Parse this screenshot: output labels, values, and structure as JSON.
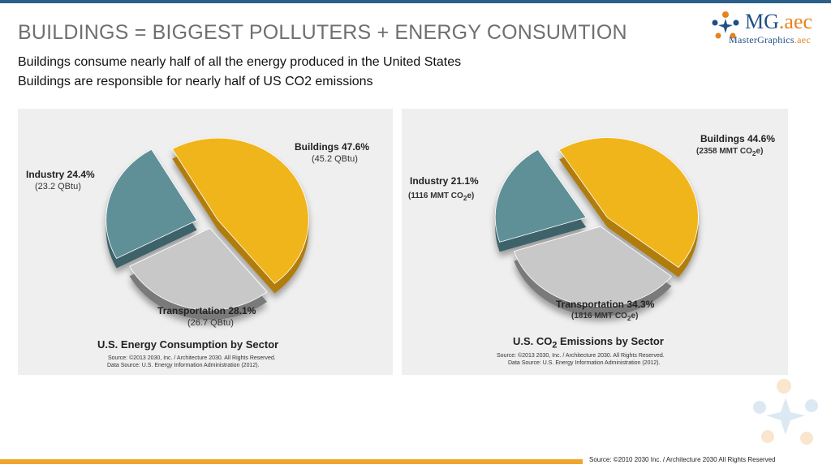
{
  "header": {
    "title": "BUILDINGS = BIGGEST POLLUTERS + ENERGY CONSUMTION",
    "line1": "Buildings consume nearly half of all the energy produced in the United States",
    "line2": "Buildings are responsible for nearly half of US CO2 emissions"
  },
  "logo": {
    "mg": "MG",
    "dot_aec": ".aec",
    "sub": "MasterGraphics",
    "sub_aec": ".aec"
  },
  "colors": {
    "buildings": "#f1b51c",
    "industry": "#5e8f97",
    "transportation": "#c8c8c8",
    "accent_orange": "#f0a52e",
    "brand_blue": "#1e4f86"
  },
  "chart_data": [
    {
      "type": "pie",
      "title": "U.S. Energy Consumption by Sector",
      "source_line1": "Source: ©2013 2030, Inc. / Architecture 2030. All Rights Reserved.",
      "source_line2": "Data Source: U.S. Energy Information Administration (2012).",
      "slices": [
        {
          "label": "Buildings 47.6%",
          "detail": "(45.2 QBtu)",
          "value": 47.6
        },
        {
          "label": "Transportation 28.1%",
          "detail": "(26.7 QBtu)",
          "value": 28.1
        },
        {
          "label": "Industry 24.4%",
          "detail": "(23.2 QBtu)",
          "value": 24.4
        }
      ]
    },
    {
      "type": "pie",
      "title_prefix": "U.S. CO",
      "title_sub": "2",
      "title_suffix": " Emissions by Sector",
      "source_line1": "Source: ©2013 2030, Inc. / Architecture 2030. All Rights Reserved.",
      "source_line2": "Data Source: U.S. Energy Information Administration (2012).",
      "slices": [
        {
          "label": "Buildings 44.6%",
          "detail_prefix": "(2358 MMT CO",
          "detail_sub": "2",
          "detail_suffix": "e)",
          "value": 44.6
        },
        {
          "label": "Transportation 34.3%",
          "detail_prefix": "(1816 MMT CO",
          "detail_sub": "2",
          "detail_suffix": "e)",
          "value": 34.3
        },
        {
          "label": "Industry 21.1%",
          "detail_prefix": "(1116 MMT CO",
          "detail_sub": "2",
          "detail_suffix": "e)",
          "value": 21.1
        }
      ]
    }
  ],
  "footer": {
    "source": "Source: ©2010 2030 Inc. / Architecture 2030 All Rights Reserved"
  }
}
